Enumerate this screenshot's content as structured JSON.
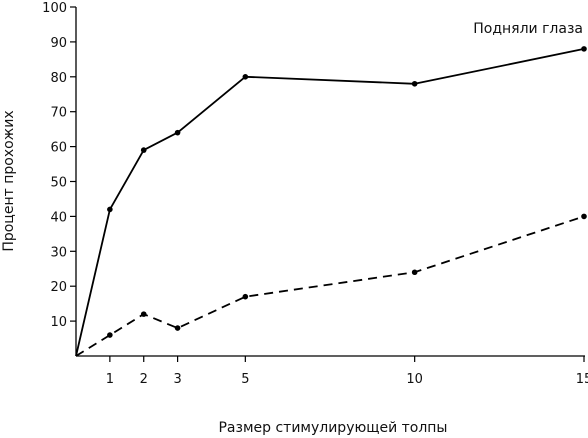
{
  "chart_data": {
    "type": "line",
    "title": "",
    "xlabel": "Размер стимулирующей толпы",
    "ylabel": "Процент прохожих",
    "xlim": [
      0,
      15
    ],
    "ylim": [
      0,
      100
    ],
    "x_ticks": [
      1,
      2,
      3,
      5,
      10,
      15
    ],
    "y_ticks": [
      10,
      20,
      30,
      40,
      50,
      60,
      70,
      80,
      90,
      100
    ],
    "grid": false,
    "series": [
      {
        "name": "Подняли глаза",
        "line_style": "solid",
        "color": "#000000",
        "points": [
          {
            "x": 0,
            "y": 0
          },
          {
            "x": 1,
            "y": 42
          },
          {
            "x": 2,
            "y": 59
          },
          {
            "x": 3,
            "y": 64
          },
          {
            "x": 5,
            "y": 80
          },
          {
            "x": 10,
            "y": 78
          },
          {
            "x": 15,
            "y": 88
          }
        ]
      },
      {
        "name": "",
        "line_style": "dashed",
        "color": "#000000",
        "points": [
          {
            "x": 0,
            "y": 0
          },
          {
            "x": 1,
            "y": 6
          },
          {
            "x": 2,
            "y": 12
          },
          {
            "x": 3,
            "y": 8
          },
          {
            "x": 5,
            "y": 17
          },
          {
            "x": 10,
            "y": 24
          },
          {
            "x": 15,
            "y": 40
          }
        ]
      }
    ]
  }
}
